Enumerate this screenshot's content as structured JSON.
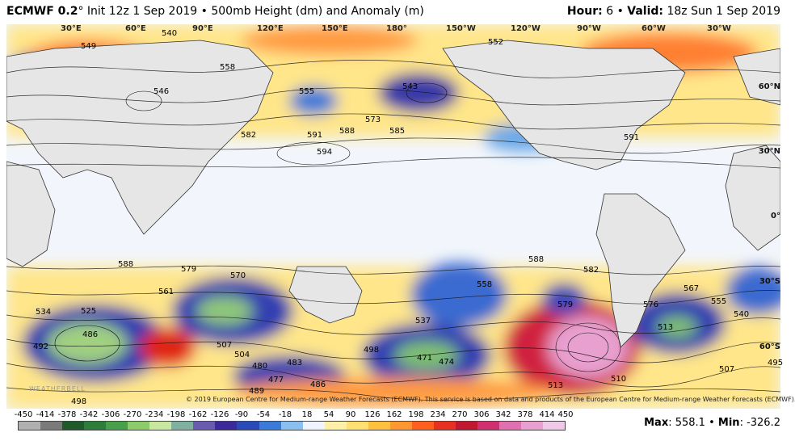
{
  "header": {
    "model": "ECMWF 0.2",
    "degree": "°",
    "init": "Init 12z 1 Sep 2019",
    "bullet": "•",
    "field": "500mb Height (dm) and Anomaly (m)",
    "hour_label": "Hour:",
    "hour_value": "6",
    "valid_label": "Valid:",
    "valid_value": "18z Sun 1 Sep 2019"
  },
  "map": {
    "lon_labels": [
      "30°E",
      "60°E",
      "90°E",
      "120°E",
      "150°E",
      "180°",
      "150°W",
      "120°W",
      "90°W",
      "60°W",
      "30°W"
    ],
    "lat_labels": [
      "60°N",
      "30°N",
      "0°",
      "30°S",
      "60°S"
    ],
    "contour_labels": [
      "549",
      "540",
      "546",
      "558",
      "555",
      "582",
      "591",
      "585",
      "594",
      "588",
      "573",
      "543",
      "552",
      "591",
      "588",
      "579",
      "570",
      "561",
      "534",
      "525",
      "486",
      "492",
      "507",
      "504",
      "489",
      "480",
      "477",
      "483",
      "486",
      "498",
      "471",
      "474",
      "537",
      "558",
      "513",
      "510",
      "579",
      "582",
      "588",
      "576",
      "513",
      "567",
      "555",
      "540",
      "495",
      "498",
      "507"
    ],
    "credit": "© 2019 European Centre for Medium-range Weather Forecasts (ECMWF). This service is based on data and products of the European Centre for Medium-range Weather Forecasts (ECMWF).",
    "watermark": "WEATHERBELL"
  },
  "colorbar": {
    "ticks": [
      "-450",
      "-414",
      "-378",
      "-342",
      "-306",
      "-270",
      "-234",
      "-198",
      "-162",
      "-126",
      "-90",
      "-54",
      "-18",
      "18",
      "54",
      "90",
      "126",
      "162",
      "198",
      "234",
      "270",
      "306",
      "342",
      "378",
      "414",
      "450"
    ],
    "colors": [
      "#b0b0b0",
      "#7a7a7a",
      "#1f5a2a",
      "#2e7d3a",
      "#4aa04a",
      "#8ccc6a",
      "#c8e8a0",
      "#7fb0a0",
      "#6a5ab0",
      "#3a2a9a",
      "#2a4ab8",
      "#3a7ad8",
      "#8ac0f0",
      "#f0f4ff",
      "#fff0a8",
      "#ffe070",
      "#ffc040",
      "#ff9830",
      "#ff6020",
      "#e83020",
      "#c01830",
      "#d03070",
      "#e070b0",
      "#e8a0d0",
      "#f0c8e8"
    ]
  },
  "stats": {
    "max_label": "Max",
    "max_value": "558.1",
    "min_label": "Min",
    "min_value": "-326.2"
  }
}
